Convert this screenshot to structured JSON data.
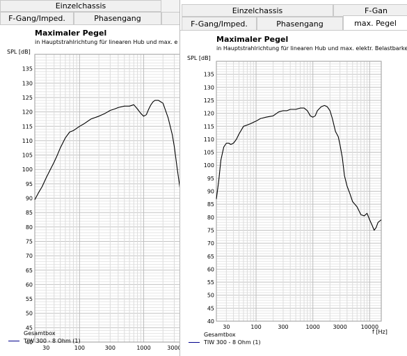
{
  "left_window": {
    "tabs": {
      "row1": [
        "Einzelchassis"
      ],
      "row2": [
        "F-Gang/Imped.",
        "Phasengang",
        ""
      ]
    },
    "chart_title": "Maximaler Pegel",
    "chart_subtitle": "in Hauptstrahlrichtung für linearen Hub und max. e",
    "y_unit": "SPL [dB]",
    "legend": [
      "Gesamtbox",
      "TIW 300 - 8 Ohm (1)"
    ]
  },
  "right_window": {
    "tabs": {
      "row1": [
        "Einzelchassis",
        "F-Gan"
      ],
      "row2": [
        "F-Gang/Imped.",
        "Phasengang",
        "max. Pegel"
      ]
    },
    "chart_title": "Maximaler Pegel",
    "chart_subtitle": "in Hauptstrahlrichtung für linearen Hub und max. elektr. Belastbarke",
    "y_unit": "SPL [dB]",
    "x_unit": "f [Hz]",
    "legend": [
      "Gesamtbox",
      "TIW 300 - 8 Ohm (1)"
    ]
  },
  "colors": {
    "grid": "#cfcfcf",
    "curve_gesamtbox": "#000000",
    "curve_tiw": "#00008b"
  },
  "chart_data": [
    {
      "type": "line",
      "title": "Maximaler Pegel",
      "subtitle": "in Hauptstrahlrichtung für linearen Hub und max. e",
      "ylabel": "SPL [dB]",
      "xlabel": "",
      "x_scale": "log",
      "xlim": [
        20,
        4000
      ],
      "ylim": [
        40,
        140
      ],
      "yticks": [
        40,
        45,
        50,
        55,
        60,
        65,
        70,
        75,
        80,
        85,
        90,
        95,
        100,
        105,
        110,
        115,
        120,
        125,
        130,
        135
      ],
      "xticks": [
        30,
        100,
        300,
        1000,
        3000
      ],
      "xtick_labels": [
        "30",
        "100",
        "300",
        "1000",
        "3000"
      ],
      "grid": true,
      "legend_position": "bottom-left",
      "series": [
        {
          "name": "TIW 300 - 8 Ohm (1)",
          "x": [
            20,
            23,
            26,
            30,
            35,
            40,
            45,
            50,
            60,
            70,
            80,
            100,
            120,
            150,
            200,
            250,
            300,
            350,
            400,
            500,
            600,
            700,
            800,
            900,
            1000,
            1100,
            1200,
            1300,
            1400,
            1500,
            1700,
            2000,
            2400,
            2800,
            3000,
            3300,
            3600,
            3900,
            4000
          ],
          "y": [
            89.5,
            92,
            94,
            97,
            100,
            102.5,
            105,
            107.5,
            111,
            113,
            113.5,
            115,
            116,
            117.5,
            118.5,
            119.5,
            120.5,
            121,
            121.5,
            122,
            122,
            122.5,
            121,
            119.5,
            118.5,
            119,
            121,
            122.5,
            123.5,
            124,
            124,
            123,
            118,
            112,
            108,
            101,
            95,
            89,
            86
          ]
        },
        {
          "name": "Gesamtbox",
          "x": [],
          "y": []
        }
      ]
    },
    {
      "type": "line",
      "title": "Maximaler Pegel",
      "subtitle": "in Hauptstrahlrichtung für linearen Hub und max. elektr. Belastbarke",
      "ylabel": "SPL [dB]",
      "xlabel": "f [Hz]",
      "x_scale": "log",
      "xlim": [
        20,
        16000
      ],
      "ylim": [
        40,
        140
      ],
      "yticks": [
        40,
        45,
        50,
        55,
        60,
        65,
        70,
        75,
        80,
        85,
        90,
        95,
        100,
        105,
        110,
        115,
        120,
        125,
        130,
        135
      ],
      "xticks": [
        30,
        100,
        300,
        1000,
        3000,
        10000
      ],
      "xtick_labels": [
        "30",
        "100",
        "300",
        "1000",
        "3000",
        "10000"
      ],
      "grid": true,
      "legend_position": "bottom-left",
      "series": [
        {
          "name": "TIW 300 - 8 Ohm (1)",
          "x": [
            20,
            22,
            24,
            27,
            30,
            33,
            36,
            40,
            45,
            50,
            60,
            70,
            80,
            100,
            120,
            150,
            200,
            250,
            300,
            350,
            400,
            500,
            600,
            700,
            800,
            900,
            1000,
            1100,
            1200,
            1400,
            1600,
            1800,
            2000,
            2200,
            2500,
            2800,
            3000,
            3300,
            3600,
            4000,
            4500,
            5000,
            6000,
            7000,
            8000,
            9000,
            10000,
            11000,
            12000,
            13000,
            14000,
            16000
          ],
          "y": [
            87,
            94,
            102,
            107,
            108.5,
            108.5,
            108,
            108.5,
            110,
            112,
            115,
            115.5,
            116,
            117,
            118,
            118.5,
            119,
            120.5,
            121,
            121,
            121.5,
            121.5,
            122,
            122,
            121,
            119,
            118.5,
            119,
            121,
            122.5,
            123,
            122.5,
            121,
            118,
            113,
            111,
            108,
            103,
            96,
            92,
            89,
            86,
            84,
            81,
            80.5,
            81.5,
            79,
            77,
            75,
            76,
            78,
            79
          ]
        },
        {
          "name": "Gesamtbox",
          "x": [],
          "y": []
        }
      ]
    }
  ]
}
